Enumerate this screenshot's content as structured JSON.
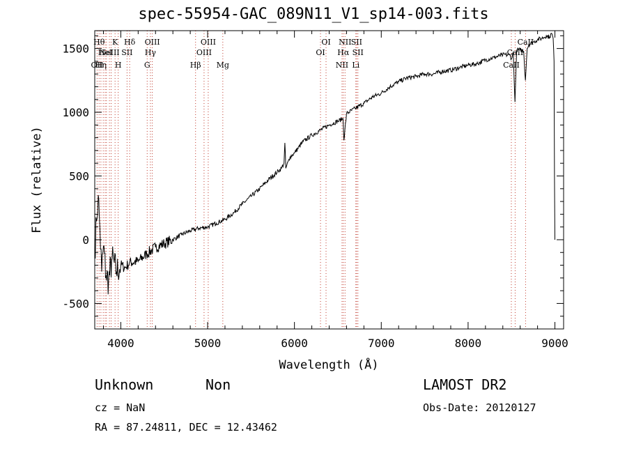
{
  "chart_data": {
    "type": "line",
    "title": "spec-55954-GAC_089N11_V1_sp14-003.fits",
    "xlabel": "Wavelength (Å)",
    "ylabel": "Flux (relative)",
    "xlim": [
      3700,
      9100
    ],
    "ylim": [
      -700,
      1640
    ],
    "xticks": [
      4000,
      5000,
      6000,
      7000,
      8000,
      9000
    ],
    "yticks": [
      -500,
      0,
      500,
      1000,
      1500
    ],
    "grid": false,
    "series": [
      {
        "x": [
          3700,
          3720,
          3740,
          3760,
          3780,
          3800,
          3830,
          3860,
          3900,
          3950,
          4000,
          4050,
          4100,
          4200,
          4300,
          4400,
          4500,
          4600,
          4700,
          4800,
          4900,
          5000,
          5100,
          5200,
          5300,
          5400,
          5500,
          5600,
          5700,
          5800,
          5850,
          5880,
          5890,
          5900,
          5950,
          6000,
          6100,
          6200,
          6300,
          6400,
          6500,
          6560,
          6570,
          6600,
          6700,
          6800,
          6900,
          7000,
          7100,
          7200,
          7300,
          7400,
          7500,
          7600,
          7700,
          7800,
          7900,
          8000,
          8100,
          8200,
          8300,
          8400,
          8480,
          8500,
          8520,
          8540,
          8560,
          8600,
          8640,
          8660,
          8680,
          8700,
          8750,
          8800,
          8850,
          8900,
          8940,
          8960,
          8980,
          8990,
          8995,
          9000
        ],
        "y": [
          -100,
          150,
          350,
          80,
          -250,
          -50,
          -280,
          -320,
          -150,
          -250,
          -200,
          -220,
          -180,
          -170,
          -110,
          -60,
          -30,
          0,
          40,
          70,
          90,
          100,
          130,
          160,
          210,
          280,
          340,
          400,
          470,
          530,
          560,
          600,
          760,
          560,
          650,
          680,
          770,
          820,
          860,
          900,
          930,
          950,
          780,
          990,
          1030,
          1070,
          1120,
          1150,
          1200,
          1240,
          1270,
          1280,
          1300,
          1300,
          1320,
          1330,
          1350,
          1370,
          1380,
          1410,
          1430,
          1450,
          1450,
          1420,
          1470,
          1080,
          1490,
          1490,
          1480,
          1250,
          1500,
          1530,
          1550,
          1570,
          1580,
          1600,
          1590,
          1620,
          1580,
          1400,
          500,
          0
        ]
      }
    ],
    "lines": [
      {
        "x": 3727,
        "label": "OII",
        "row": 2
      },
      {
        "x": 3750,
        "label": "Hθ",
        "row": 0
      },
      {
        "x": 3771,
        "label": "Hη",
        "row": 2
      },
      {
        "x": 3798,
        "label": "",
        "row": -1
      },
      {
        "x": 3820,
        "label": "HeI",
        "row": 1
      },
      {
        "x": 3835,
        "label": "",
        "row": -1
      },
      {
        "x": 3869,
        "label": "NeIII",
        "row": 1
      },
      {
        "x": 3889,
        "label": "",
        "row": -1
      },
      {
        "x": 3934,
        "label": "K",
        "row": 0
      },
      {
        "x": 3970,
        "label": "H",
        "row": 2
      },
      {
        "x": 4072,
        "label": "SII",
        "row": 1
      },
      {
        "x": 4102,
        "label": "Hδ",
        "row": 0
      },
      {
        "x": 4304,
        "label": "G",
        "row": 2
      },
      {
        "x": 4341,
        "label": "Hγ",
        "row": 1
      },
      {
        "x": 4363,
        "label": "OIII",
        "row": 0
      },
      {
        "x": 4861,
        "label": "Hβ",
        "row": 2
      },
      {
        "x": 4959,
        "label": "OIII",
        "row": 1
      },
      {
        "x": 5007,
        "label": "OIII",
        "row": 0
      },
      {
        "x": 5175,
        "label": "Mg",
        "row": 2
      },
      {
        "x": 6300,
        "label": "OI",
        "row": 1
      },
      {
        "x": 6364,
        "label": "OI",
        "row": 0
      },
      {
        "x": 6548,
        "label": "NII",
        "row": 2
      },
      {
        "x": 6563,
        "label": "Hα",
        "row": 1
      },
      {
        "x": 6583,
        "label": "NII",
        "row": 0
      },
      {
        "x": 6707,
        "label": "Li",
        "row": 2
      },
      {
        "x": 6716,
        "label": "SII",
        "row": 0
      },
      {
        "x": 6731,
        "label": "SII",
        "row": 1
      },
      {
        "x": 8498,
        "label": "CaII",
        "row": 2
      },
      {
        "x": 8542,
        "label": "CaII",
        "row": 1
      },
      {
        "x": 8662,
        "label": "CaII",
        "row": 0
      }
    ]
  },
  "info": {
    "object_class": "Unknown",
    "subclass": "Non",
    "survey": "LAMOST DR2",
    "cz": "cz = NaN",
    "obs_date": "Obs-Date: 20120127",
    "coords": "RA =  87.24811, DEC =  12.43462"
  }
}
